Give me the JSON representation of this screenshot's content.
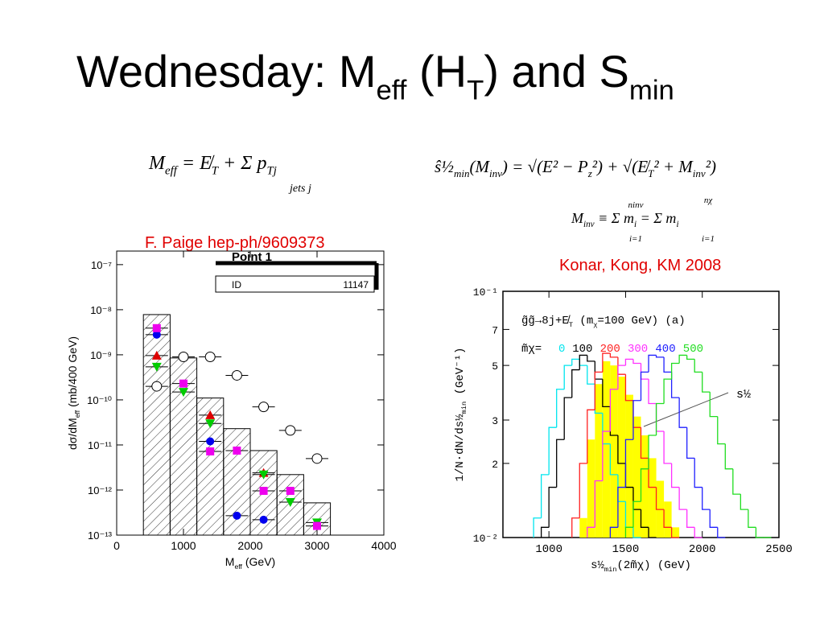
{
  "slide": {
    "title": [
      "Wednesday: M",
      "eff",
      " (H",
      "T",
      ") and S",
      "min"
    ],
    "formula_meff": [
      "M",
      "eff",
      " = E̸",
      "T",
      " + Σ p",
      "Tj"
    ],
    "formula_meff_limit": "jets  j",
    "formula_smin": [
      "ŝ½",
      "min",
      "(M",
      "inv",
      ") = √(E² − P",
      "z",
      "²) + √(E̸",
      "T",
      "² + M",
      "inv",
      "²)"
    ],
    "formula_minv": [
      "M",
      "inv",
      " ≡ Σ m",
      "i",
      " = Σ m",
      "i"
    ],
    "formula_minv_limits": [
      "ninv",
      "i=1",
      "nχ",
      "i=1"
    ],
    "citation_left": "F. Paige hep-ph/9609373",
    "citation_right": "Konar, Kong, KM 2008"
  },
  "chart_data": [
    {
      "type": "histogram",
      "title": "Point 1",
      "id_box": {
        "label": "ID",
        "number": "11147"
      },
      "xlabel": [
        "M",
        "eff",
        " (GeV)"
      ],
      "ylabel": [
        "dσ/dM",
        "eff",
        " (mb/400 GeV)"
      ],
      "log_y": true,
      "xlim": [
        0,
        4000
      ],
      "ylim": [
        1e-13,
        2e-07
      ],
      "xticks": [
        0,
        1000,
        2000,
        3000,
        4000
      ],
      "yticks": [
        {
          "value": 1e-13,
          "label": "10⁻¹³"
        },
        {
          "value": 1e-12,
          "label": "10⁻¹²"
        },
        {
          "value": 1e-11,
          "label": "10⁻¹¹"
        },
        {
          "value": 1e-10,
          "label": "10⁻¹⁰"
        },
        {
          "value": 1e-09,
          "label": "10⁻⁹"
        },
        {
          "value": 1e-08,
          "label": "10⁻⁸"
        },
        {
          "value": 1e-07,
          "label": "10⁻⁷"
        }
      ],
      "bins": [
        400,
        800,
        1200,
        1600,
        2000,
        2400,
        2800,
        3200
      ],
      "counts": [
        7.8e-09,
        8.5e-10,
        1.1e-10,
        2.3e-11,
        7.5e-12,
        2.2e-12,
        5.2e-13
      ],
      "hist_color": "#000000",
      "points": [
        {
          "marker": "open-circle",
          "color": "#000000",
          "x": [
            600,
            1000,
            1400,
            1800,
            2200,
            2600,
            3000
          ],
          "values": [
            2e-10,
            9e-10,
            9e-10,
            3.5e-10,
            7e-11,
            2.1e-11,
            5e-12
          ]
        },
        {
          "marker": "circle",
          "color": "#0000ee",
          "x": [
            600,
            1400,
            1800,
            2200
          ],
          "values": [
            2.8e-09,
            1.2e-11,
            2.7e-13,
            2.2e-13
          ]
        },
        {
          "marker": "triangle-up",
          "color": "#dd0000",
          "x": [
            600,
            1400,
            2200
          ],
          "values": [
            9.6e-10,
            4.6e-11,
            2.4e-12
          ]
        },
        {
          "marker": "triangle-down",
          "color": "#00cc00",
          "x": [
            600,
            1000,
            1400,
            2200,
            2600,
            3000
          ],
          "values": [
            5.4e-10,
            1.5e-10,
            3e-11,
            2.2e-12,
            5.4e-13,
            1.9e-13
          ]
        },
        {
          "marker": "square",
          "color": "#ee00ee",
          "x": [
            600,
            1000,
            1400,
            1800,
            2200,
            2600,
            3000
          ],
          "values": [
            3.9e-09,
            2.3e-10,
            7.2e-12,
            7.5e-12,
            9.6e-13,
            9.6e-13,
            1.6e-13
          ]
        }
      ]
    },
    {
      "type": "step",
      "annotation": [
        "g̃g̃→8j+E̸",
        "T",
        "   (m",
        "χ",
        "=100 GeV)    (a)"
      ],
      "legend_title": "m̃χ=",
      "arrow_label": "s½",
      "xlabel": [
        "s½",
        "min",
        "(2m̃χ)  (GeV)"
      ],
      "ylabel": [
        "1/N·dN/ds½",
        "min",
        " (GeV⁻¹)"
      ],
      "log_y": true,
      "xlim": [
        700,
        2500
      ],
      "ylim": [
        0.01,
        0.1
      ],
      "xticks": [
        1000,
        1500,
        2000,
        2500
      ],
      "yticks": [
        {
          "value": 0.01,
          "label": "10⁻²"
        },
        {
          "value": 0.02,
          "label": "2"
        },
        {
          "value": 0.03,
          "label": "3"
        },
        {
          "value": 0.05,
          "label": "5"
        },
        {
          "value": 0.07,
          "label": "7"
        },
        {
          "value": 0.1,
          "label": "10⁻¹"
        }
      ],
      "filled": {
        "color": "#ffff00",
        "bins": [
          1200,
          1250,
          1300,
          1350,
          1400,
          1450,
          1500,
          1550,
          1600,
          1650,
          1700,
          1750,
          1800,
          1850,
          1900
        ],
        "values": [
          0.012,
          0.025,
          0.042,
          0.052,
          0.05,
          0.045,
          0.038,
          0.031,
          0.026,
          0.021,
          0.017,
          0.014,
          0.011,
          0.01
        ]
      },
      "series": [
        {
          "name": "0",
          "color": "#00e5ee",
          "bins": [
            900,
            950,
            1000,
            1050,
            1100,
            1150,
            1200,
            1250,
            1300,
            1350,
            1400,
            1450,
            1500,
            1550,
            1600
          ],
          "values": [
            0.012,
            0.018,
            0.028,
            0.04,
            0.05,
            0.053,
            0.05,
            0.042,
            0.032,
            0.024,
            0.018,
            0.014,
            0.011,
            0.01
          ]
        },
        {
          "name": "100",
          "color": "#000000",
          "bins": [
            950,
            1000,
            1050,
            1100,
            1150,
            1200,
            1250,
            1300,
            1350,
            1400,
            1450,
            1500,
            1550,
            1600,
            1650,
            1700
          ],
          "values": [
            0.011,
            0.016,
            0.025,
            0.037,
            0.048,
            0.055,
            0.052,
            0.044,
            0.034,
            0.026,
            0.02,
            0.016,
            0.013,
            0.011,
            0.01
          ]
        },
        {
          "name": "200",
          "color": "#ff2020",
          "bins": [
            1150,
            1200,
            1250,
            1300,
            1350,
            1400,
            1450,
            1500,
            1550,
            1600,
            1650,
            1700,
            1750,
            1800,
            1850
          ],
          "values": [
            0.012,
            0.02,
            0.033,
            0.047,
            0.056,
            0.054,
            0.046,
            0.036,
            0.028,
            0.021,
            0.016,
            0.013,
            0.011,
            0.01
          ]
        },
        {
          "name": "300",
          "color": "#ff30ff",
          "bins": [
            1250,
            1300,
            1350,
            1400,
            1450,
            1500,
            1550,
            1600,
            1650,
            1700,
            1750,
            1800,
            1850,
            1900,
            1950,
            2000
          ],
          "values": [
            0.011,
            0.017,
            0.027,
            0.04,
            0.05,
            0.053,
            0.051,
            0.044,
            0.035,
            0.027,
            0.02,
            0.016,
            0.013,
            0.011,
            0.01
          ]
        },
        {
          "name": "400",
          "color": "#2020ff",
          "bins": [
            1400,
            1450,
            1500,
            1550,
            1600,
            1650,
            1700,
            1750,
            1800,
            1850,
            1900,
            1950,
            2000,
            2050,
            2100,
            2150
          ],
          "values": [
            0.011,
            0.016,
            0.025,
            0.036,
            0.047,
            0.055,
            0.054,
            0.047,
            0.037,
            0.028,
            0.021,
            0.016,
            0.013,
            0.011,
            0.01
          ]
        },
        {
          "name": "500",
          "color": "#20dd20",
          "bins": [
            1500,
            1550,
            1600,
            1650,
            1700,
            1750,
            1800,
            1850,
            1900,
            1950,
            2000,
            2050,
            2100,
            2150,
            2200,
            2250,
            2300,
            2350,
            2400,
            2450
          ],
          "values": [
            0.011,
            0.014,
            0.019,
            0.026,
            0.035,
            0.044,
            0.051,
            0.055,
            0.053,
            0.047,
            0.039,
            0.031,
            0.024,
            0.019,
            0.015,
            0.013,
            0.011,
            0.01,
            0.01
          ]
        }
      ]
    }
  ]
}
